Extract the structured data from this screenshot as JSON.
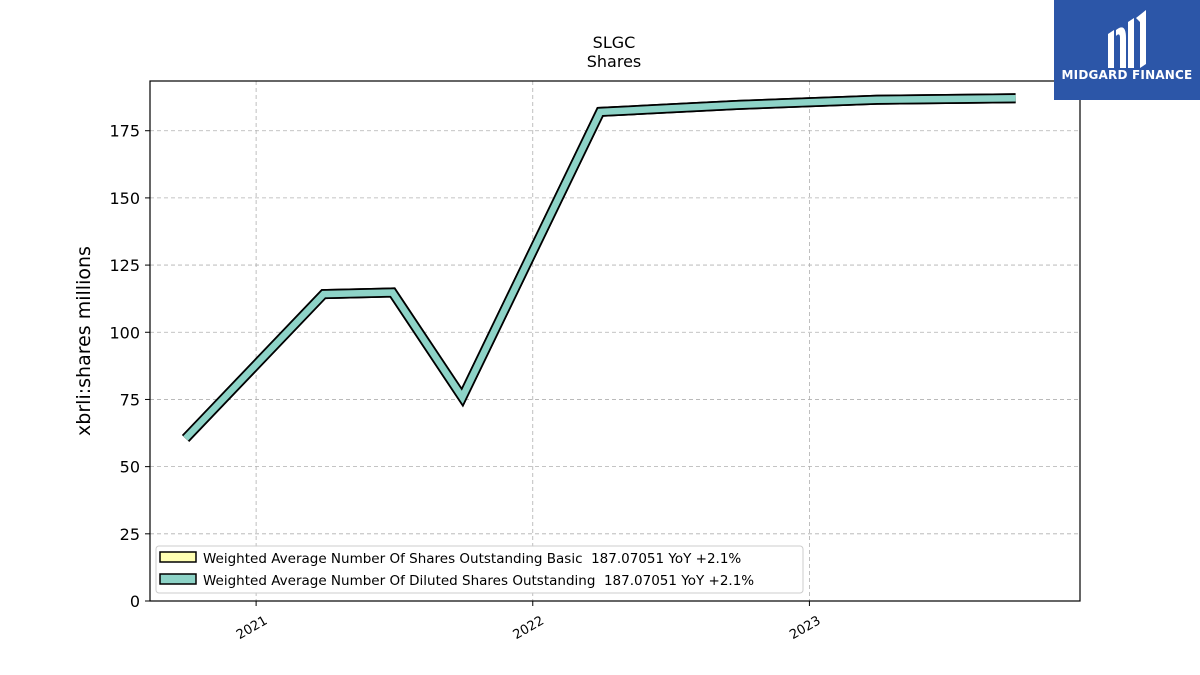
{
  "logo": {
    "text": "MIDGARD FINANCE",
    "background": "#2c56a8",
    "icon": "midgard-logo-icon"
  },
  "chart_data": {
    "type": "line",
    "title": "SLGC",
    "subtitle": "Shares",
    "ylabel": "xbrli:shares millions",
    "xlabel": "",
    "ylim": [
      0,
      193.5
    ],
    "yticks": [
      0,
      25,
      50,
      75,
      100,
      125,
      150,
      175
    ],
    "xticks": [
      {
        "label": "2021",
        "date": "2021-01-01"
      },
      {
        "label": "2022",
        "date": "2022-01-01"
      },
      {
        "label": "2023",
        "date": "2023-01-01"
      }
    ],
    "xlim": [
      "2020-08-14",
      "2023-12-24"
    ],
    "grid": true,
    "legend_position": "lower-left",
    "series": [
      {
        "name": "Weighted Average Number Of Shares Outstanding Basic  187.07051 YoY +2.1%",
        "color": "#ffffb3",
        "x": [
          "2020-09-30",
          "2021-03-31",
          "2021-06-30",
          "2021-09-30",
          "2022-03-31",
          "2022-06-30",
          "2022-09-30",
          "2022-12-31",
          "2023-03-31",
          "2023-06-30",
          "2023-09-30"
        ],
        "values": [
          60.5,
          114.2,
          114.8,
          75.8,
          182.0,
          183.3,
          184.6,
          185.6,
          186.5,
          186.8,
          187.07
        ]
      },
      {
        "name": "Weighted Average Number Of Diluted Shares Outstanding  187.07051 YoY +2.1%",
        "color": "#8dd3c7",
        "x": [
          "2020-09-30",
          "2021-03-31",
          "2021-06-30",
          "2021-09-30",
          "2022-03-31",
          "2022-06-30",
          "2022-09-30",
          "2022-12-31",
          "2023-03-31",
          "2023-06-30",
          "2023-09-30"
        ],
        "values": [
          60.5,
          114.2,
          114.8,
          75.8,
          182.0,
          183.3,
          184.6,
          185.6,
          186.5,
          186.8,
          187.07
        ]
      }
    ]
  }
}
